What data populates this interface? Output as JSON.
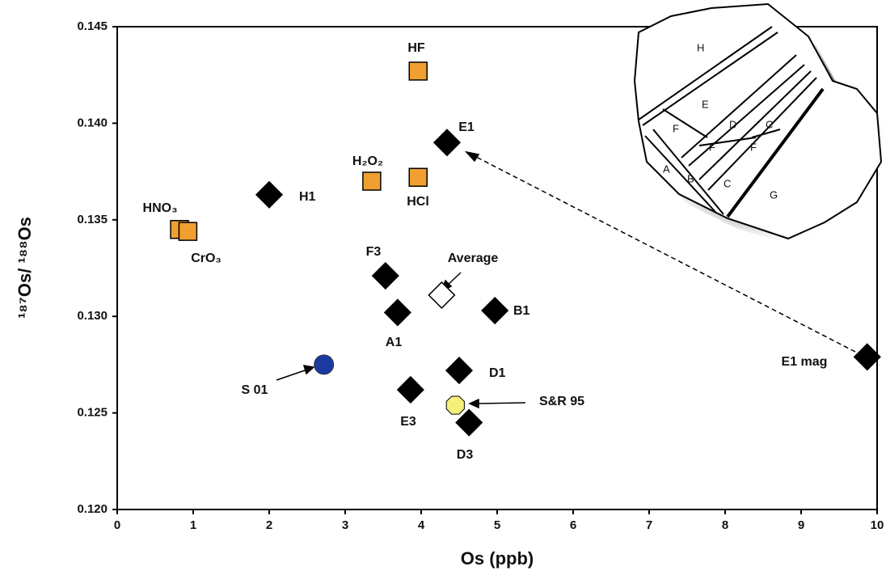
{
  "chart_data": {
    "type": "scatter",
    "x_label": "Os (ppb)",
    "y_label": "¹⁸⁷Os/ ¹⁸⁸Os",
    "xlim": [
      0,
      10
    ],
    "xticks": [
      0,
      1,
      2,
      3,
      4,
      5,
      6,
      7,
      8,
      9,
      10
    ],
    "ylim": [
      0.12,
      0.145
    ],
    "yticks": [
      {
        "value": 0.12,
        "label": "0.120"
      },
      0.125,
      {
        "value": 0.13,
        "label": "0.130"
      },
      0.135,
      {
        "value": 0.14,
        "label": "0.140"
      },
      0.145
    ],
    "series": [
      {
        "marker": "diamond",
        "color": "#000000",
        "labels": [
          "H1",
          "E1",
          "F3",
          "A1",
          "B1",
          "D1",
          "E3",
          "D3",
          "E1 mag"
        ],
        "x": [
          2.0,
          4.34,
          3.53,
          3.69,
          4.97,
          4.5,
          3.86,
          4.63,
          9.87
        ],
        "values": [
          0.1363,
          0.139,
          0.1321,
          0.1302,
          0.1303,
          0.1272,
          0.1262,
          0.1245,
          0.1279
        ]
      },
      {
        "marker": "square",
        "color": "#f0a030",
        "labels": [
          "HF",
          "H₂O₂",
          "HCl",
          "HNO₃",
          "CrO₃"
        ],
        "x": [
          3.96,
          3.35,
          3.96,
          0.82,
          0.93
        ],
        "values": [
          0.1427,
          0.137,
          0.1372,
          0.1345,
          0.1344
        ]
      },
      {
        "marker": "diamond",
        "color": "#ffffff",
        "labels": [
          "Average"
        ],
        "x": [
          4.27
        ],
        "values": [
          0.1311
        ]
      },
      {
        "marker": "circle",
        "color": "#1a3aa0",
        "labels": [
          "S 01"
        ],
        "x": [
          2.72
        ],
        "values": [
          0.1275
        ]
      },
      {
        "marker": "octagon",
        "color": "#f5f07a",
        "labels": [
          "S&R 95"
        ],
        "x": [
          4.45
        ],
        "values": [
          0.1254
        ]
      }
    ]
  },
  "inset": {
    "labels": [
      "H",
      "E",
      "F",
      "D",
      "C",
      "F",
      "F",
      "A",
      "B",
      "C",
      "G"
    ]
  }
}
